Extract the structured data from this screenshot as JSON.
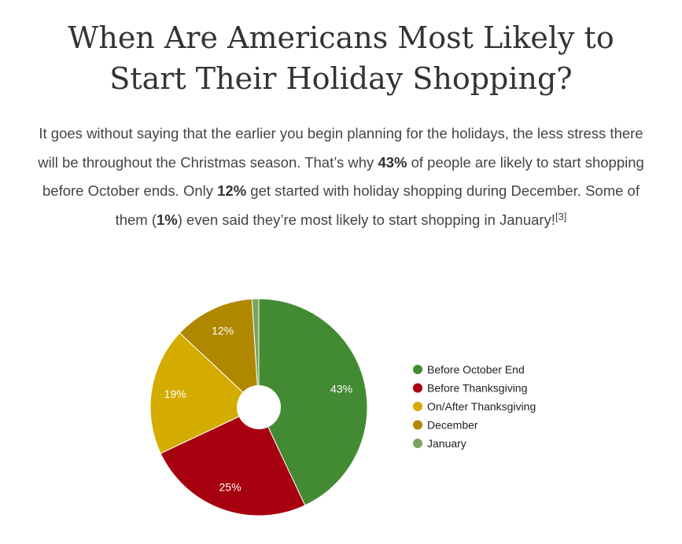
{
  "header": {
    "title_line1": "When Are Americans Most Likely to",
    "title_line2": "Start Their Holiday Shopping?"
  },
  "intro": {
    "p1": "It goes without saying that the earlier you begin planning for the holidays, the less stress there will be throughout the Christmas season. That’s why ",
    "b1": "43%",
    "p2": " of people are likely to start shopping before October ends. Only ",
    "b2": "12%",
    "p3": " get started with holiday shopping during December. Some of them (",
    "b3": "1%",
    "p4": ") even said they’re most likely to start shopping in January!",
    "ref": "[3]"
  },
  "chart_data": {
    "type": "pie",
    "title": "",
    "donut": true,
    "legend_position": "right",
    "categories": [
      "Before October End",
      "Before Thanksgiving",
      "On/After Thanksgiving",
      "December",
      "January"
    ],
    "values": [
      43,
      25,
      19,
      12,
      1
    ],
    "value_labels": [
      "43%",
      "25%",
      "19%",
      "12%",
      ""
    ],
    "colors": [
      "#438b33",
      "#a7000f",
      "#d4ac00",
      "#b08800",
      "#79a35f"
    ]
  }
}
